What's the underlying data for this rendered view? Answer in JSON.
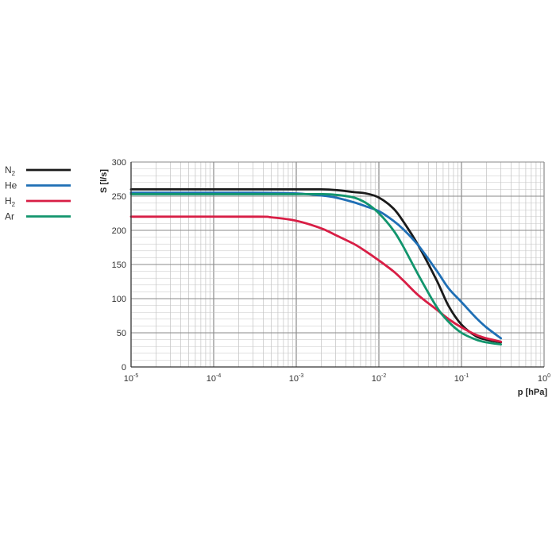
{
  "chart_data": {
    "type": "line",
    "title": "",
    "xlabel": "p [hPa]",
    "ylabel": "S [l/s]",
    "xscale": "log",
    "xlim": [
      1e-05,
      1
    ],
    "ylim": [
      0,
      300
    ],
    "grid": true,
    "legend_position": "left",
    "x_ticks": [
      {
        "value": 1e-05,
        "base": "10",
        "exp": "-5"
      },
      {
        "value": 0.0001,
        "base": "10",
        "exp": "-4"
      },
      {
        "value": 0.001,
        "base": "10",
        "exp": "-3"
      },
      {
        "value": 0.01,
        "base": "10",
        "exp": "-2"
      },
      {
        "value": 0.1,
        "base": "10",
        "exp": "-1"
      },
      {
        "value": 1,
        "base": "10",
        "exp": "0"
      }
    ],
    "y_ticks": [
      0,
      50,
      100,
      150,
      200,
      250,
      300
    ],
    "series": [
      {
        "name": "N",
        "sub": "2",
        "color": "#1a1a1a",
        "x": [
          1e-05,
          0.0003,
          0.001,
          0.002,
          0.003,
          0.005,
          0.007,
          0.01,
          0.015,
          0.02,
          0.03,
          0.05,
          0.07,
          0.1,
          0.15,
          0.2,
          0.3
        ],
        "y": [
          260,
          260,
          260,
          260,
          259,
          256,
          254,
          248,
          232,
          212,
          178,
          127,
          89,
          62,
          45,
          40,
          36
        ]
      },
      {
        "name": "He",
        "sub": "",
        "color": "#1f6fb5",
        "x": [
          1e-05,
          0.0003,
          0.001,
          0.002,
          0.003,
          0.005,
          0.007,
          0.01,
          0.015,
          0.02,
          0.03,
          0.05,
          0.07,
          0.1,
          0.15,
          0.2,
          0.3
        ],
        "y": [
          255,
          255,
          254,
          251,
          248,
          241,
          235,
          228,
          214,
          201,
          178,
          141,
          115,
          95,
          72,
          58,
          42
        ]
      },
      {
        "name": "H",
        "sub": "2",
        "color": "#d81e45",
        "x": [
          1e-05,
          0.0003,
          0.0005,
          0.001,
          0.002,
          0.003,
          0.005,
          0.007,
          0.01,
          0.015,
          0.02,
          0.03,
          0.05,
          0.07,
          0.1,
          0.15,
          0.2,
          0.3
        ],
        "y": [
          220,
          220,
          219,
          214,
          203,
          193,
          180,
          169,
          156,
          140,
          126,
          105,
          84,
          70,
          58,
          47,
          42,
          37
        ]
      },
      {
        "name": "Ar",
        "sub": "",
        "color": "#12956d",
        "x": [
          1e-05,
          0.0003,
          0.001,
          0.002,
          0.003,
          0.005,
          0.007,
          0.01,
          0.015,
          0.02,
          0.03,
          0.05,
          0.07,
          0.1,
          0.15,
          0.2,
          0.3
        ],
        "y": [
          253,
          253,
          253,
          253,
          252,
          248,
          240,
          225,
          200,
          175,
          135,
          88,
          66,
          50,
          40,
          36,
          33
        ]
      }
    ]
  }
}
